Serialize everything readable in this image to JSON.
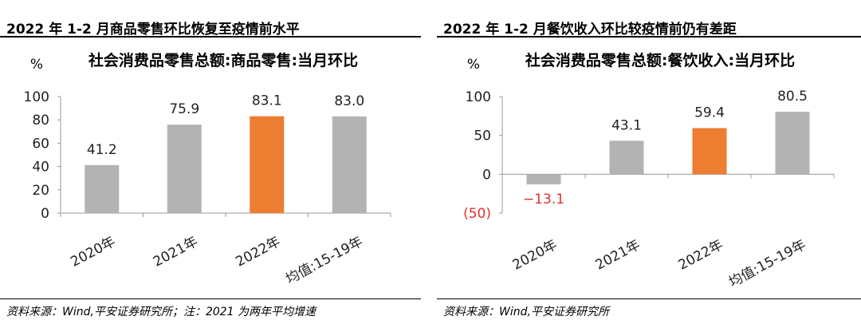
{
  "left": {
    "header": "2022 年 1-2 月商品零售环比恢复至疫情前水平",
    "source": "资料来源：Wind,平安证券研究所；注：2021 为两年平均增速"
  },
  "right": {
    "header": "2022 年 1-2 月餐饮收入环比较疫情前仍有差距",
    "source": "资料来源：Wind,平安证券研究所"
  },
  "chart_data": [
    {
      "type": "bar",
      "title": "社会消费品零售总额:商品零售:当月环比",
      "ylabel": "%",
      "categories": [
        "2020年",
        "2021年",
        "2022年",
        "均值:15-19年"
      ],
      "values": [
        41.2,
        75.9,
        83.1,
        83.0
      ],
      "data_labels": [
        "41.2",
        "75.9",
        "83.1",
        "83.0"
      ],
      "yticks": [
        0,
        20,
        40,
        60,
        80,
        100
      ],
      "ytick_labels": [
        "0",
        "20",
        "40",
        "60",
        "80",
        "100"
      ],
      "ylim": [
        0,
        100
      ],
      "colors": [
        "#b3b3b3",
        "#b3b3b3",
        "#ed7d31",
        "#b3b3b3"
      ],
      "grid": false,
      "legend": "none"
    },
    {
      "type": "bar",
      "title": "社会消费品零售总额:餐饮收入:当月环比",
      "ylabel": "%",
      "categories": [
        "2020年",
        "2021年",
        "2022年",
        "均值:15-19年"
      ],
      "values": [
        -13.1,
        43.1,
        59.4,
        80.5
      ],
      "data_labels": [
        "−13.1",
        "43.1",
        "59.4",
        "80.5"
      ],
      "yticks": [
        -50,
        0,
        50,
        100
      ],
      "ytick_labels": [
        "(50)",
        "0",
        "50",
        "100"
      ],
      "ylim": [
        -50,
        100
      ],
      "colors": [
        "#b3b3b3",
        "#b3b3b3",
        "#ed7d31",
        "#b3b3b3"
      ],
      "negative_color": "#e03030",
      "grid": false,
      "legend": "none"
    }
  ]
}
